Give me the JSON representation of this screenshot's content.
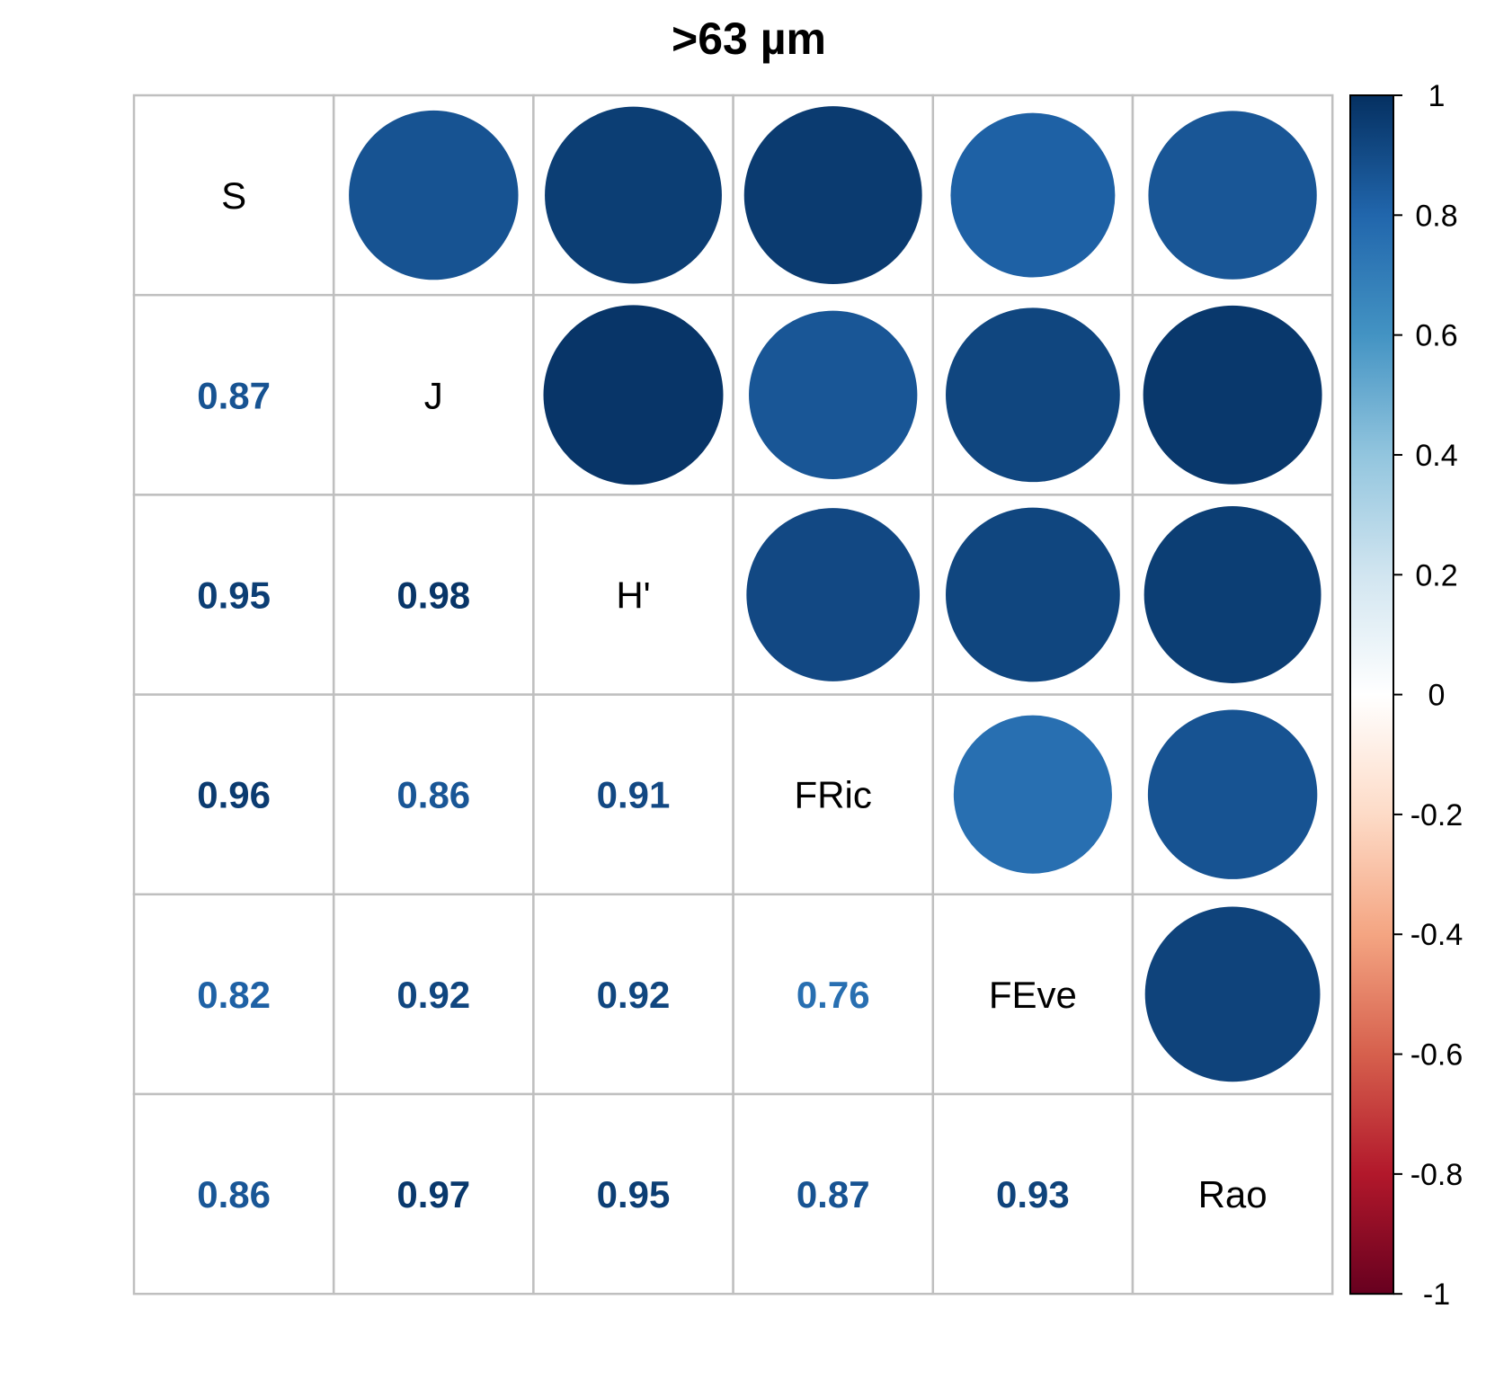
{
  "chart_data": {
    "type": "heatmap",
    "title": ">63 µm",
    "variables": [
      "S",
      "J",
      "H'",
      "FRic",
      "FEve",
      "Rao"
    ],
    "matrix": [
      [
        1,
        0.87,
        0.95,
        0.96,
        0.82,
        0.86
      ],
      [
        0.87,
        1,
        0.98,
        0.86,
        0.92,
        0.97
      ],
      [
        0.95,
        0.98,
        1,
        0.91,
        0.92,
        0.95
      ],
      [
        0.96,
        0.86,
        0.91,
        1,
        0.76,
        0.87
      ],
      [
        0.82,
        0.92,
        0.92,
        0.76,
        1,
        0.93
      ],
      [
        0.86,
        0.97,
        0.95,
        0.87,
        0.93,
        1
      ]
    ],
    "upper_triangle": "circle",
    "lower_triangle": "number",
    "diagonal": "variable-name",
    "colorbar": {
      "range": [
        -1,
        1
      ],
      "ticks": [
        "1",
        "0.8",
        "0.6",
        "0.4",
        "0.2",
        "0",
        "-0.2",
        "-0.4",
        "-0.6",
        "-0.8",
        "-1"
      ],
      "placement": "right"
    },
    "colors": {
      "grid": "#bfbfbf",
      "palette": [
        "#67001F",
        "#B2182B",
        "#D6604D",
        "#F4A582",
        "#FDDBC7",
        "#FFFFFF",
        "#D1E5F0",
        "#92C5DE",
        "#4393C3",
        "#2166AC",
        "#053061"
      ]
    }
  }
}
